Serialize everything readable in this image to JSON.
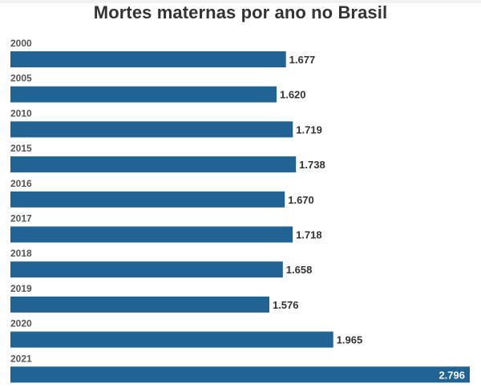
{
  "chart_data": {
    "type": "bar",
    "orientation": "horizontal",
    "title": "Mortes maternas por ano no Brasil",
    "categories": [
      "2000",
      "2005",
      "2010",
      "2015",
      "2016",
      "2017",
      "2018",
      "2019",
      "2020",
      "2021"
    ],
    "values": [
      1677,
      1620,
      1719,
      1738,
      1670,
      1718,
      1658,
      1576,
      1965,
      2796
    ],
    "value_labels": [
      "1.677",
      "1.620",
      "1.719",
      "1.738",
      "1.670",
      "1.718",
      "1.658",
      "1.576",
      "1.965",
      "2.796"
    ],
    "xlim": [
      0,
      2796
    ],
    "bar_color": "#1f6494",
    "grid": false,
    "legend": "none"
  }
}
